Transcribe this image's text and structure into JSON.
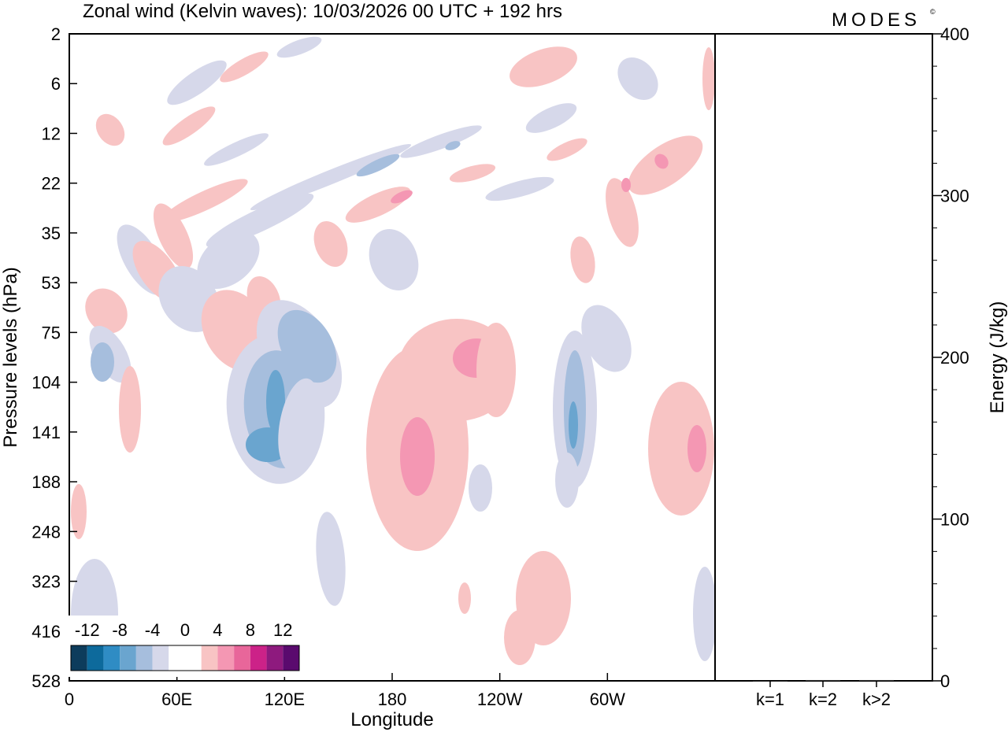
{
  "header": {
    "title": "Zonal wind (Kelvin waves):  10/03/2026  00 UTC  + 192 hrs",
    "brand": "MODES",
    "brand_mark": "©"
  },
  "chart_data": [
    {
      "type": "heatmap",
      "title": "Zonal wind (Kelvin waves):  10/03/2026  00 UTC  + 192 hrs",
      "xlabel": "Longitude",
      "ylabel": "Pressure levels (hPa)",
      "x_ticks": [
        "0",
        "60E",
        "120E",
        "180",
        "120W",
        "60W"
      ],
      "x_tick_lon": [
        0,
        60,
        120,
        180,
        240,
        300
      ],
      "xlim": [
        0,
        360
      ],
      "y_ticks": [
        "2",
        "6",
        "12",
        "22",
        "35",
        "53",
        "75",
        "104",
        "141",
        "188",
        "248",
        "323",
        "416",
        "528"
      ],
      "y_order": "top-to-bottom",
      "legend": {
        "placement": "bottom-left",
        "labels": [
          "-12",
          "-8",
          "-4",
          "0",
          "4",
          "8",
          "12"
        ],
        "colors": [
          "#0d3c5c",
          "#0d6a9c",
          "#2f8cc4",
          "#6aa5cf",
          "#a6bedd",
          "#d6d8ea",
          "#ffffff",
          "#ffffff",
          "#f8c4c4",
          "#f497b3",
          "#e8669a",
          "#cc2288",
          "#8e1a7e",
          "#5a0a6e"
        ]
      },
      "colors": {
        "negative_light": "#d6d8ea",
        "negative_mid": "#a6bedd",
        "negative_dark": "#6aa5cf",
        "positive_light": "#f8c4c4",
        "positive_mid": "#f497b3",
        "positive_dark": "#e8669a"
      },
      "features": [
        {
          "lon": 105,
          "level": "141",
          "value": -8
        },
        {
          "lon": 115,
          "level": "104",
          "value": -6
        },
        {
          "lon": 135,
          "level": "75",
          "value": -6
        },
        {
          "lon": 280,
          "level": "141",
          "value": -8
        },
        {
          "lon": 190,
          "level": "141",
          "value": 6
        },
        {
          "lon": 225,
          "level": "104",
          "value": 6
        },
        {
          "lon": 345,
          "level": "141",
          "value": 6
        },
        {
          "lon": 180,
          "level": "22",
          "value": 6
        },
        {
          "lon": 70,
          "level": "22",
          "value": 5
        }
      ]
    },
    {
      "type": "bar",
      "ylabel": "Energy (J/kg)",
      "categories": [
        "k=1",
        "k=2",
        "k>2"
      ],
      "values": [
        0,
        0.5,
        0.5
      ],
      "ylim": [
        0,
        400
      ],
      "y_ticks": [
        "0",
        "100",
        "200",
        "300",
        "400"
      ]
    }
  ]
}
